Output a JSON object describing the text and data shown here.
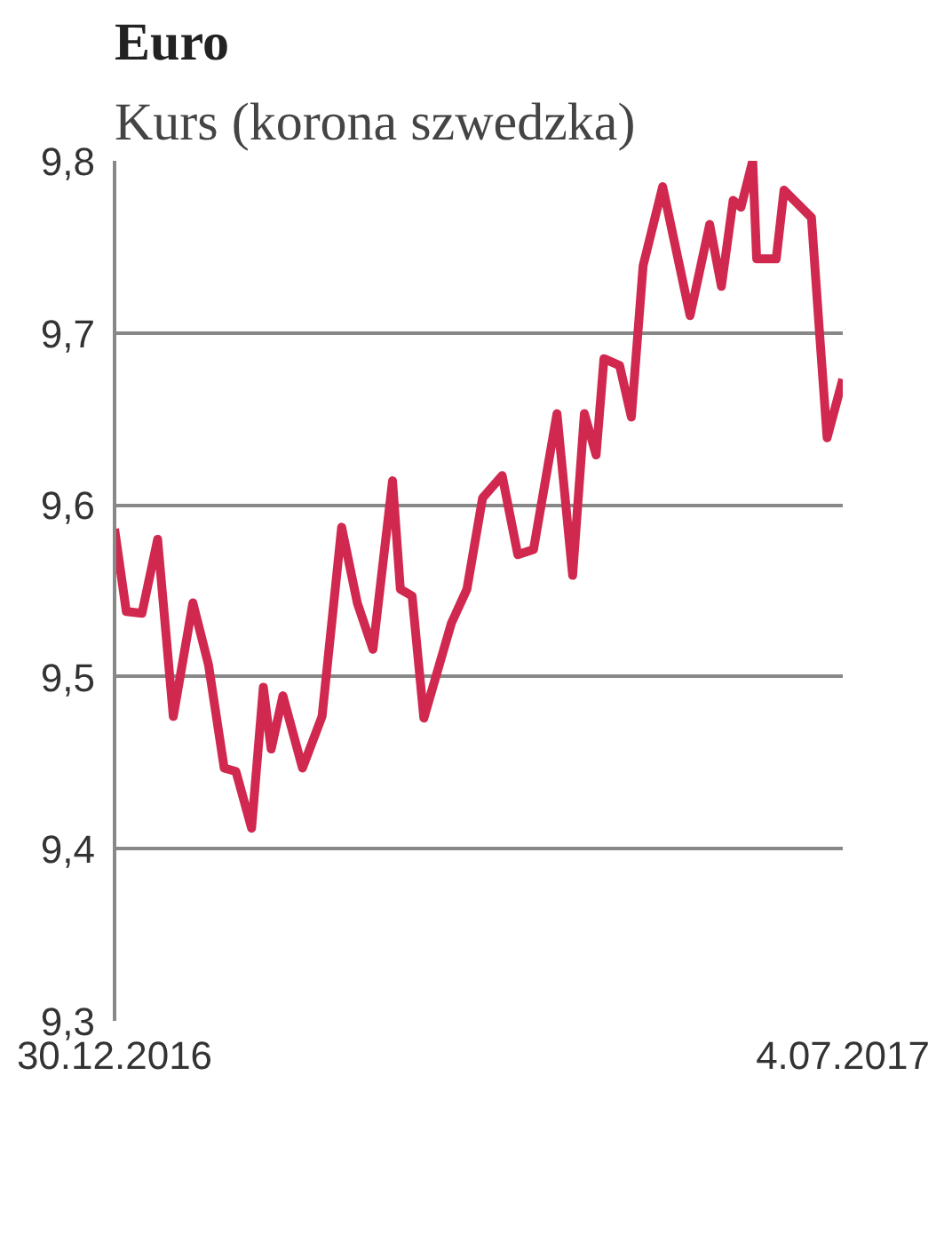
{
  "chart_data": {
    "type": "line",
    "title": "Euro",
    "subtitle": "Kurs (korona szwedzka)",
    "x": [
      "2016-12-30",
      "2017-01-02",
      "2017-01-06",
      "2017-01-10",
      "2017-01-14",
      "2017-01-19",
      "2017-01-23",
      "2017-01-27",
      "2017-01-30",
      "2017-02-03",
      "2017-02-06",
      "2017-02-08",
      "2017-02-11",
      "2017-02-16",
      "2017-02-21",
      "2017-02-26",
      "2017-03-02",
      "2017-03-06",
      "2017-03-11",
      "2017-03-13",
      "2017-03-16",
      "2017-03-19",
      "2017-03-26",
      "2017-03-30",
      "2017-04-03",
      "2017-04-08",
      "2017-04-12",
      "2017-04-16",
      "2017-04-22",
      "2017-04-26",
      "2017-04-29",
      "2017-05-02",
      "2017-05-04",
      "2017-05-08",
      "2017-05-11",
      "2017-05-14",
      "2017-05-19",
      "2017-05-26",
      "2017-05-31",
      "2017-06-03",
      "2017-06-06",
      "2017-06-08",
      "2017-06-11",
      "2017-06-12",
      "2017-06-17",
      "2017-06-19",
      "2017-06-26",
      "2017-06-28",
      "2017-06-30",
      "2017-07-04"
    ],
    "series": [
      {
        "color": "#d0284f",
        "values": [
          9.586,
          9.538,
          9.537,
          9.58,
          9.477,
          9.543,
          9.507,
          9.447,
          9.445,
          9.412,
          9.494,
          9.458,
          9.489,
          9.447,
          9.477,
          9.587,
          9.543,
          9.516,
          9.614,
          9.551,
          9.547,
          9.476,
          9.531,
          9.551,
          9.604,
          9.617,
          9.571,
          9.574,
          9.653,
          9.559,
          9.653,
          9.629,
          9.685,
          9.681,
          9.651,
          9.739,
          9.785,
          9.71,
          9.763,
          9.727,
          9.777,
          9.773,
          9.8,
          9.743,
          9.743,
          9.783,
          9.767,
          9.702,
          9.639,
          9.673
        ]
      }
    ],
    "xlim": [
      "2016-12-30",
      "2017-07-04"
    ],
    "xticks": [
      {
        "value": "2016-12-30",
        "label": "30.12.2016"
      },
      {
        "value": "2017-07-04",
        "label": "4.07.2017"
      }
    ],
    "ylim": [
      9.3,
      9.8
    ],
    "yticks": [
      {
        "value": 9.3,
        "label": "9,3"
      },
      {
        "value": 9.4,
        "label": "9,4"
      },
      {
        "value": 9.5,
        "label": "9,5"
      },
      {
        "value": 9.6,
        "label": "9,6"
      },
      {
        "value": 9.7,
        "label": "9,7"
      },
      {
        "value": 9.8,
        "label": "9,8"
      }
    ],
    "grid": "y",
    "marker": "none",
    "line_style": "solid"
  }
}
